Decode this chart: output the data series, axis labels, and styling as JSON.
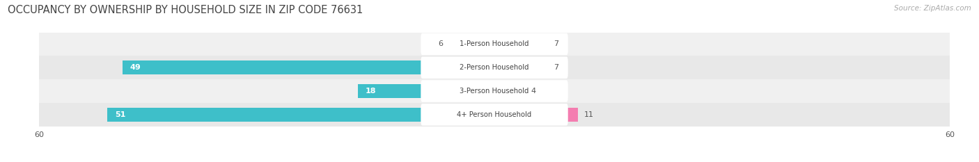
{
  "title": "OCCUPANCY BY OWNERSHIP BY HOUSEHOLD SIZE IN ZIP CODE 76631",
  "source": "Source: ZipAtlas.com",
  "categories": [
    "1-Person Household",
    "2-Person Household",
    "3-Person Household",
    "4+ Person Household"
  ],
  "owner_values": [
    6,
    49,
    18,
    51
  ],
  "renter_values": [
    7,
    7,
    4,
    11
  ],
  "owner_color": "#3ebfc9",
  "renter_color": "#f47db0",
  "axis_limit": 60,
  "title_fontsize": 10.5,
  "bar_height": 0.58,
  "row_colors": [
    "#f0f0f0",
    "#e8e8e8",
    "#f0f0f0",
    "#e8e8e8"
  ]
}
